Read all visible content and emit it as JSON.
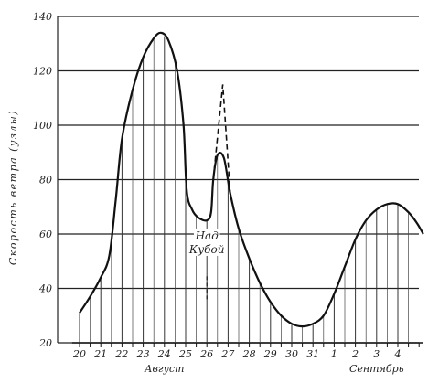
{
  "chart_data": {
    "type": "line",
    "title": "",
    "xlabel": "",
    "ylabel": "Скорость ветра (узлы)",
    "ylim": [
      20,
      140
    ],
    "yticks": [
      20,
      40,
      60,
      80,
      100,
      120,
      140
    ],
    "grid": "horizontal",
    "categories": [
      "20",
      "21",
      "22",
      "23",
      "24",
      "25",
      "26",
      "27",
      "28",
      "29",
      "30",
      "31",
      "1",
      "2",
      "3",
      "4"
    ],
    "month_labels": [
      {
        "text": "Август",
        "under": "24"
      },
      {
        "text": "Сентябрь",
        "under": "3"
      }
    ],
    "series": [
      {
        "style": "solid",
        "points": [
          [
            20,
            31
          ],
          [
            20.5,
            37
          ],
          [
            21,
            44
          ],
          [
            21.4,
            52
          ],
          [
            21.7,
            72
          ],
          [
            22,
            95
          ],
          [
            22.5,
            113
          ],
          [
            23,
            125
          ],
          [
            23.5,
            132
          ],
          [
            23.85,
            134
          ],
          [
            24.2,
            131
          ],
          [
            24.6,
            120
          ],
          [
            24.9,
            100
          ],
          [
            25.05,
            76
          ],
          [
            25.3,
            69
          ],
          [
            25.6,
            66
          ],
          [
            26,
            65
          ],
          [
            26.2,
            68
          ],
          [
            26.3,
            80
          ],
          [
            26.5,
            89
          ],
          [
            26.8,
            88
          ],
          [
            27.1,
            75
          ],
          [
            27.5,
            62
          ],
          [
            28,
            51
          ],
          [
            28.5,
            42
          ],
          [
            29,
            35
          ],
          [
            29.5,
            30
          ],
          [
            30,
            27
          ],
          [
            30.5,
            26
          ],
          [
            31,
            27
          ],
          [
            31.5,
            30
          ],
          [
            32,
            38
          ],
          [
            32.5,
            48
          ],
          [
            33,
            58
          ],
          [
            33.5,
            65
          ],
          [
            34,
            69
          ],
          [
            34.5,
            71
          ],
          [
            35,
            71
          ],
          [
            35.5,
            68
          ],
          [
            35.9,
            64
          ],
          [
            36.2,
            60
          ]
        ]
      },
      {
        "style": "dashed",
        "annotation": "Над Кубой",
        "points": [
          [
            26.3,
            80
          ],
          [
            26.75,
            115
          ],
          [
            27.1,
            75
          ]
        ]
      }
    ]
  }
}
